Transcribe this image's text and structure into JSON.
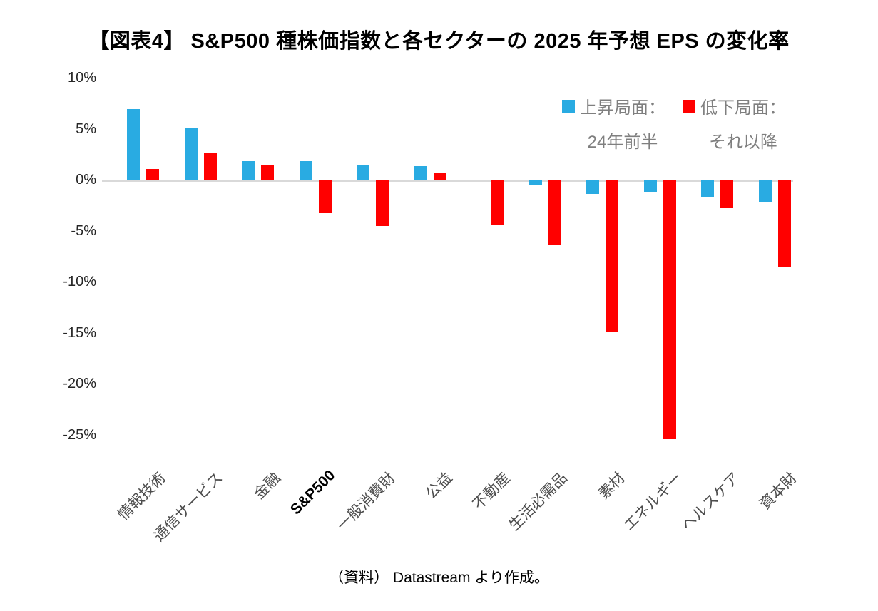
{
  "title": "【図表4】 S&P500 種株価指数と各セクターの 2025 年予想 EPS の変化率",
  "source": "（資料） Datastream より作成。",
  "legend": {
    "up": {
      "label": "上昇局面：",
      "sublabel": "24年前半"
    },
    "down": {
      "label": "低下局面：",
      "sublabel": "それ以降"
    }
  },
  "colors": {
    "up_bar": "#29abe2",
    "down_bar": "#ff0000",
    "axis_line": "#d9d9d9",
    "legend_text": "#7f7f7f",
    "category_text": "#4d4d4d"
  },
  "chart_data": {
    "type": "bar",
    "title": "S&P500種株価指数と各セクターの2025年予想EPSの変化率",
    "categories": [
      "情報技術",
      "通信サービス",
      "金融",
      "S&P500",
      "一般消費財",
      "公益",
      "不動産",
      "生活必需品",
      "素材",
      "エネルギー",
      "ヘルスケア",
      "資本財"
    ],
    "series": [
      {
        "name": "上昇局面：24年前半",
        "color": "#29abe2",
        "values": [
          7.0,
          5.1,
          1.9,
          1.9,
          1.5,
          1.4,
          0.0,
          -0.5,
          -1.3,
          -1.2,
          -1.6,
          -2.1
        ]
      },
      {
        "name": "低下局面：それ以降",
        "color": "#ff0000",
        "values": [
          1.1,
          2.7,
          1.5,
          -3.2,
          -4.5,
          0.7,
          -4.4,
          -6.3,
          -14.8,
          -25.4,
          -2.7,
          -8.5
        ]
      }
    ],
    "xlabel": "",
    "ylabel": "",
    "ylim": [
      -26,
      10
    ],
    "yticks": [
      10,
      5,
      0,
      -5,
      -10,
      -15,
      -20,
      -25
    ],
    "ytick_format": "percent",
    "grid": false,
    "legend_position": "top-right",
    "emphasis_category": "S&P500"
  }
}
